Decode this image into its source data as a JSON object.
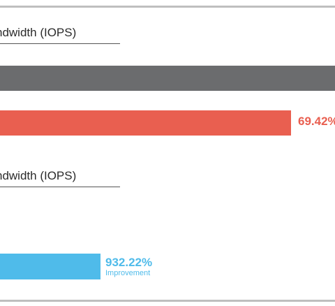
{
  "colors": {
    "border": "#bfbfbf",
    "gray_bar": "#6b6c6e",
    "red": "#e95f50",
    "blue": "#4fbbea"
  },
  "section_top": {
    "label": "ndwidth (IOPS)",
    "red_value": "69.42%",
    "red_bar_fraction": 0.8694
  },
  "section_bottom": {
    "label": "ndwidth (IOPS)",
    "blue_value": "932.22%",
    "blue_caption": "Improvement",
    "blue_bar_fraction": 0.3
  }
}
